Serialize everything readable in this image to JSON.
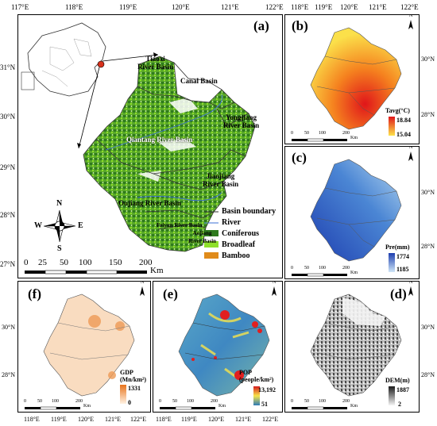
{
  "top_axis_labels": [
    "117°E",
    "118°E",
    "119°E",
    "120°E",
    "121°E",
    "122°E",
    "118°E",
    "119°E",
    "120°E",
    "121°E",
    "122°E"
  ],
  "bottom_axis_labels": [
    "118°E",
    "119°E",
    "120°E",
    "121°E",
    "122°E",
    "118°E",
    "119°E",
    "120°E",
    "121°E",
    "122°E"
  ],
  "main_lat_labels": [
    "31°N",
    "30°N",
    "29°N",
    "28°N",
    "27°N"
  ],
  "right_lat_labels": [
    "30°N",
    "28°N"
  ],
  "panel_a": {
    "label": "(a)",
    "basins": {
      "canal": "Canal Basin",
      "tiaoxi": "Tiaoxi\nRiver Basin",
      "yongjiang": "Yongjiang\nRiver Basin",
      "qiantang": "Qiantang River Basin",
      "jiaojiang": "Jiaojiang\nRiver Basin",
      "oujiang": "Oujiang River Basin",
      "feiyun": "Feiyun River Basin",
      "aojiang": "Aojiang\nRiver Basin"
    },
    "legend": {
      "boundary": "Basin boundary",
      "river": "River",
      "coniferous": "Coniferous",
      "broadleaf": "Broadleaf",
      "bamboo": "Bamboo"
    },
    "compass": {
      "n": "N",
      "s": "S",
      "e": "E",
      "w": "W"
    },
    "scale": {
      "ticks": [
        "0",
        "25",
        "50",
        "100",
        "150",
        "200"
      ],
      "unit": "Km"
    },
    "colors": {
      "coniferous": "#2f7a1e",
      "broadleaf": "#8ee02a",
      "bamboo": "#e08b1a",
      "river": "#3b6fd6"
    }
  },
  "panel_b": {
    "label": "(b)",
    "cbar_title": "Tavg(°C)",
    "max": "18.84",
    "min": "15.04"
  },
  "panel_c": {
    "label": "(c)",
    "cbar_title": "Pre(mm)",
    "max": "1774",
    "min": "1185"
  },
  "panel_d": {
    "label": "(d)",
    "cbar_title": "DEM(m)",
    "max": "1887",
    "min": "2"
  },
  "panel_e": {
    "label": "(e)",
    "cbar_title": "POP\n(people/km²)",
    "max": "13,192",
    "min": "51"
  },
  "panel_f": {
    "label": "(f)",
    "cbar_title": "GDP\n(Mn/km²)",
    "max": "1331",
    "min": "0"
  },
  "small_scale": {
    "ticks": [
      "0",
      "50",
      "100",
      "200"
    ],
    "unit": "Km"
  },
  "north_label": "N"
}
